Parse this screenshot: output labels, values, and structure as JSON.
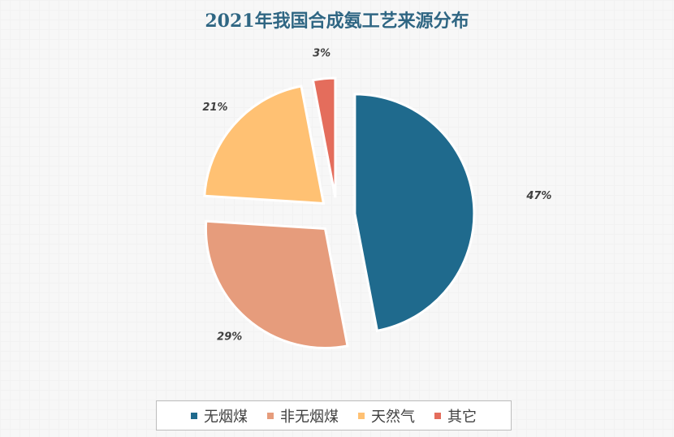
{
  "chart_data": {
    "type": "pie",
    "title": "2021年我国合成氨工艺来源分布",
    "categories": [
      "无烟煤",
      "非无烟煤",
      "天然气",
      "其它"
    ],
    "values": [
      47,
      29,
      21,
      3
    ],
    "labels": [
      "47%",
      "29%",
      "21%",
      "3%"
    ],
    "colors": [
      "#1f6a8d",
      "#e69c7c",
      "#ffc173",
      "#e46d5c"
    ],
    "exploded": true,
    "legend_position": "bottom"
  }
}
